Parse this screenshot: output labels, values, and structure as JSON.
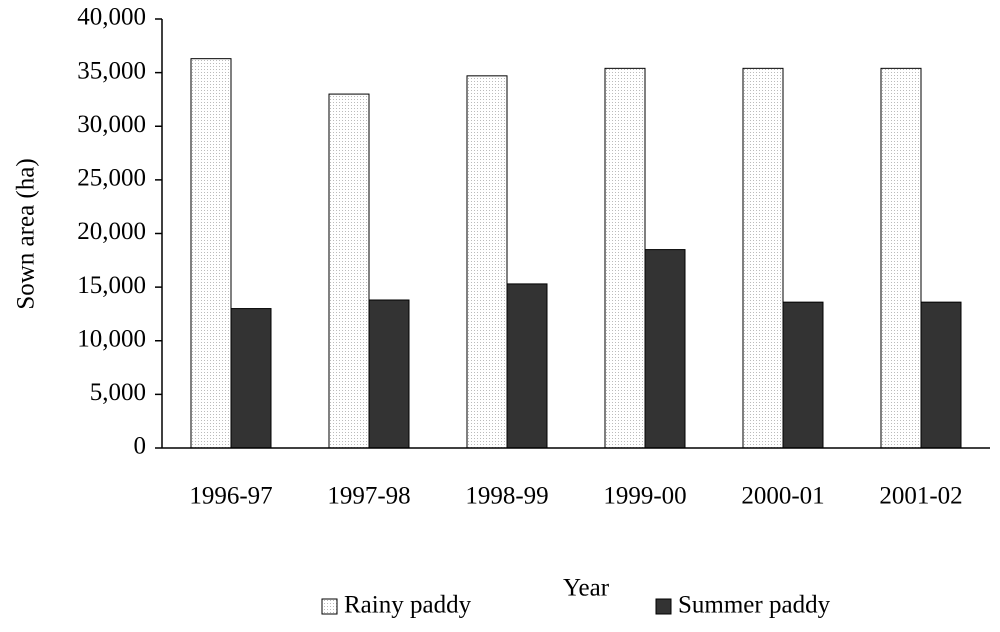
{
  "chart_data": {
    "type": "bar",
    "x_label": "Year",
    "y_label": "Sown area (ha)",
    "categories": [
      "1996-97",
      "1997-98",
      "1998-99",
      "1999-00",
      "2000-01",
      "2001-02"
    ],
    "series": [
      {
        "name": "Rainy paddy",
        "color": "#f2f2f2",
        "values": [
          36300,
          33000,
          34700,
          35400,
          35400,
          35400
        ]
      },
      {
        "name": "Summer paddy",
        "color": "#333333",
        "values": [
          13000,
          13800,
          15300,
          18500,
          13600,
          13600
        ]
      }
    ],
    "ylim": [
      0,
      40000
    ],
    "yticks": [
      0,
      {
        "value": 5000,
        "label": "5,000"
      },
      {
        "value": 10000,
        "label": "10,000"
      },
      {
        "value": 15000,
        "label": "15,000"
      },
      {
        "value": 20000,
        "label": "20,000"
      },
      {
        "value": 25000,
        "label": "25,000"
      },
      {
        "value": 30000,
        "label": "30,000"
      },
      {
        "value": 35000,
        "label": "35,000"
      },
      {
        "value": 40000,
        "label": "40,000"
      }
    ],
    "legend": "bottom"
  }
}
